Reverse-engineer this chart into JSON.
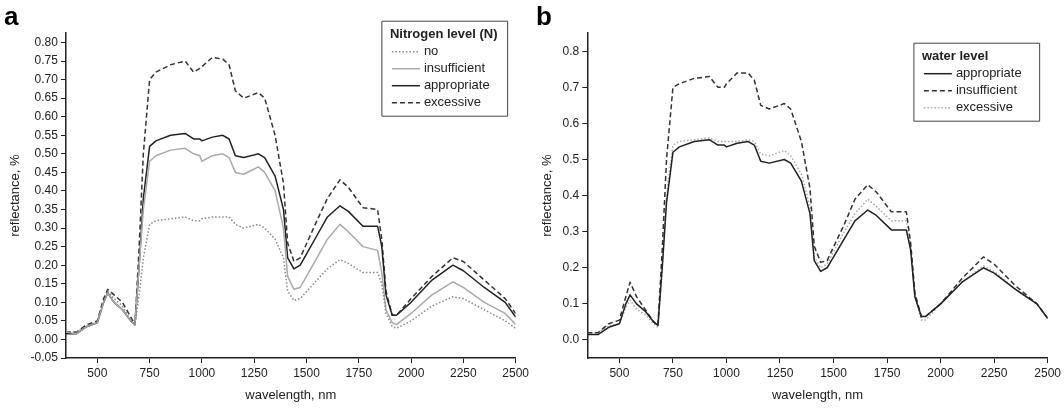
{
  "chart_data": [
    {
      "type": "line",
      "title": "a",
      "xlabel": "wavelength, nm",
      "ylabel": "reflectance, %",
      "legend_title": "Nitrogen level (N)",
      "legend": "top right",
      "marker": "none",
      "x": [
        350,
        400,
        450,
        500,
        530,
        550,
        580,
        620,
        660,
        680,
        700,
        720,
        750,
        780,
        850,
        920,
        960,
        990,
        1000,
        1050,
        1100,
        1130,
        1160,
        1200,
        1270,
        1300,
        1350,
        1390,
        1410,
        1440,
        1470,
        1550,
        1600,
        1660,
        1700,
        1770,
        1840,
        1860,
        1880,
        1910,
        1930,
        2000,
        2100,
        2200,
        2250,
        2350,
        2450,
        2500
      ],
      "xlim": [
        350,
        2500
      ],
      "xticks": [
        500,
        750,
        1000,
        1250,
        1500,
        1750,
        2000,
        2250,
        2500
      ],
      "ylim": [
        -0.05,
        0.825
      ],
      "yticks": [
        {
          "value": -0.05,
          "label": "-0.05"
        },
        {
          "value": 0,
          "label": "0.00"
        },
        {
          "value": 0.05,
          "label": "0.05"
        },
        {
          "value": 0.1,
          "label": "0.10"
        },
        {
          "value": 0.15,
          "label": "0.15"
        },
        {
          "value": 0.2,
          "label": "0.20"
        },
        {
          "value": 0.25,
          "label": "0.25"
        },
        {
          "value": 0.3,
          "label": "0.30"
        },
        {
          "value": 0.35,
          "label": "0.35"
        },
        {
          "value": 0.4,
          "label": "0.40"
        },
        {
          "value": 0.45,
          "label": "0.45"
        },
        {
          "value": 0.5,
          "label": "0.50"
        },
        {
          "value": 0.55,
          "label": "0.55"
        },
        {
          "value": 0.6,
          "label": "0.60"
        },
        {
          "value": 0.65,
          "label": "0.65"
        },
        {
          "value": 0.7,
          "label": "0.70"
        },
        {
          "value": 0.75,
          "label": "0.75"
        },
        {
          "value": 0.8,
          "label": "0.80"
        }
      ],
      "series": [
        {
          "name": "no",
          "color": "#888888",
          "line_style": "dotted",
          "values": [
            0.02,
            0.02,
            0.035,
            0.045,
            0.1,
            0.13,
            0.11,
            0.09,
            0.05,
            0.04,
            0.12,
            0.22,
            0.31,
            0.32,
            0.325,
            0.33,
            0.32,
            0.32,
            0.325,
            0.33,
            0.33,
            0.33,
            0.31,
            0.3,
            0.31,
            0.3,
            0.27,
            0.22,
            0.13,
            0.105,
            0.11,
            0.16,
            0.19,
            0.215,
            0.205,
            0.18,
            0.18,
            0.15,
            0.07,
            0.035,
            0.03,
            0.05,
            0.09,
            0.115,
            0.11,
            0.08,
            0.05,
            0.03
          ]
        },
        {
          "name": "insufficient",
          "color": "#aaaaaa",
          "line_style": "solid",
          "values": [
            0.02,
            0.015,
            0.035,
            0.045,
            0.1,
            0.125,
            0.1,
            0.08,
            0.05,
            0.04,
            0.2,
            0.35,
            0.48,
            0.495,
            0.51,
            0.515,
            0.5,
            0.495,
            0.48,
            0.495,
            0.5,
            0.49,
            0.45,
            0.445,
            0.465,
            0.45,
            0.4,
            0.3,
            0.17,
            0.135,
            0.14,
            0.22,
            0.27,
            0.31,
            0.29,
            0.25,
            0.24,
            0.18,
            0.08,
            0.045,
            0.04,
            0.07,
            0.12,
            0.155,
            0.14,
            0.1,
            0.07,
            0.04
          ]
        },
        {
          "name": "appropriate",
          "color": "#222222",
          "line_style": "solid",
          "values": [
            0.015,
            0.015,
            0.035,
            0.045,
            0.1,
            0.125,
            0.1,
            0.08,
            0.05,
            0.04,
            0.2,
            0.38,
            0.52,
            0.535,
            0.55,
            0.555,
            0.54,
            0.54,
            0.535,
            0.545,
            0.55,
            0.54,
            0.495,
            0.49,
            0.5,
            0.49,
            0.44,
            0.35,
            0.22,
            0.19,
            0.2,
            0.28,
            0.33,
            0.36,
            0.345,
            0.305,
            0.305,
            0.25,
            0.12,
            0.065,
            0.065,
            0.1,
            0.16,
            0.2,
            0.185,
            0.14,
            0.1,
            0.06
          ]
        },
        {
          "name": "excessive",
          "color": "#333333",
          "line_style": "dashed",
          "values": [
            0.02,
            0.02,
            0.04,
            0.05,
            0.11,
            0.135,
            0.12,
            0.1,
            0.06,
            0.04,
            0.25,
            0.5,
            0.7,
            0.72,
            0.74,
            0.75,
            0.72,
            0.73,
            0.735,
            0.76,
            0.755,
            0.74,
            0.67,
            0.65,
            0.665,
            0.65,
            0.55,
            0.42,
            0.26,
            0.21,
            0.22,
            0.32,
            0.38,
            0.43,
            0.41,
            0.355,
            0.35,
            0.27,
            0.13,
            0.065,
            0.065,
            0.11,
            0.17,
            0.22,
            0.21,
            0.16,
            0.11,
            0.07
          ]
        }
      ]
    },
    {
      "type": "line",
      "title": "b",
      "xlabel": "wavelength, nm",
      "ylabel": "reflectance, %",
      "legend_title": "water level",
      "legend": "top right",
      "marker": "none",
      "x": [
        350,
        400,
        450,
        500,
        530,
        550,
        580,
        620,
        660,
        680,
        700,
        720,
        750,
        780,
        850,
        920,
        960,
        990,
        1000,
        1050,
        1100,
        1130,
        1160,
        1200,
        1270,
        1300,
        1350,
        1390,
        1410,
        1440,
        1470,
        1550,
        1600,
        1660,
        1700,
        1770,
        1840,
        1860,
        1880,
        1910,
        1930,
        2000,
        2100,
        2200,
        2250,
        2350,
        2450,
        2500
      ],
      "xlim": [
        350,
        2500
      ],
      "xticks": [
        500,
        750,
        1000,
        1250,
        1500,
        1750,
        2000,
        2250,
        2500
      ],
      "ylim": [
        -0.05,
        0.85
      ],
      "yticks": [
        {
          "value": 0,
          "label": "0.0"
        },
        {
          "value": 0.1,
          "label": "0.1"
        },
        {
          "value": 0.2,
          "label": "0.2"
        },
        {
          "value": 0.3,
          "label": "0.3"
        },
        {
          "value": 0.4,
          "label": "0.4"
        },
        {
          "value": 0.5,
          "label": "0.5"
        },
        {
          "value": 0.6,
          "label": "0.6"
        },
        {
          "value": 0.7,
          "label": "0.7"
        },
        {
          "value": 0.8,
          "label": "0.8"
        }
      ],
      "series": [
        {
          "name": "appropriate",
          "color": "#222222",
          "line_style": "solid",
          "values": [
            0.015,
            0.015,
            0.035,
            0.045,
            0.1,
            0.125,
            0.1,
            0.08,
            0.05,
            0.04,
            0.2,
            0.38,
            0.52,
            0.535,
            0.55,
            0.555,
            0.54,
            0.54,
            0.535,
            0.545,
            0.55,
            0.54,
            0.495,
            0.49,
            0.5,
            0.49,
            0.44,
            0.35,
            0.22,
            0.19,
            0.2,
            0.28,
            0.33,
            0.36,
            0.345,
            0.305,
            0.305,
            0.25,
            0.12,
            0.065,
            0.065,
            0.1,
            0.16,
            0.2,
            0.185,
            0.14,
            0.1,
            0.06
          ]
        },
        {
          "name": "insufficient",
          "color": "#333333",
          "line_style": "dashed",
          "values": [
            0.02,
            0.02,
            0.045,
            0.055,
            0.12,
            0.16,
            0.12,
            0.085,
            0.05,
            0.04,
            0.25,
            0.5,
            0.7,
            0.71,
            0.725,
            0.73,
            0.7,
            0.7,
            0.71,
            0.74,
            0.74,
            0.72,
            0.65,
            0.64,
            0.655,
            0.64,
            0.55,
            0.42,
            0.26,
            0.215,
            0.22,
            0.32,
            0.39,
            0.43,
            0.41,
            0.355,
            0.355,
            0.27,
            0.13,
            0.065,
            0.065,
            0.1,
            0.17,
            0.23,
            0.21,
            0.15,
            0.1,
            0.06
          ]
        },
        {
          "name": "excessive",
          "color": "#aaaaaa",
          "line_style": "dotted",
          "values": [
            0.02,
            0.02,
            0.04,
            0.045,
            0.09,
            0.11,
            0.085,
            0.07,
            0.045,
            0.035,
            0.2,
            0.4,
            0.54,
            0.55,
            0.555,
            0.56,
            0.55,
            0.55,
            0.55,
            0.55,
            0.555,
            0.55,
            0.515,
            0.51,
            0.525,
            0.51,
            0.46,
            0.37,
            0.23,
            0.2,
            0.21,
            0.3,
            0.35,
            0.39,
            0.37,
            0.33,
            0.33,
            0.26,
            0.12,
            0.055,
            0.055,
            0.1,
            0.16,
            0.205,
            0.19,
            0.14,
            0.1,
            0.06
          ]
        }
      ]
    }
  ]
}
